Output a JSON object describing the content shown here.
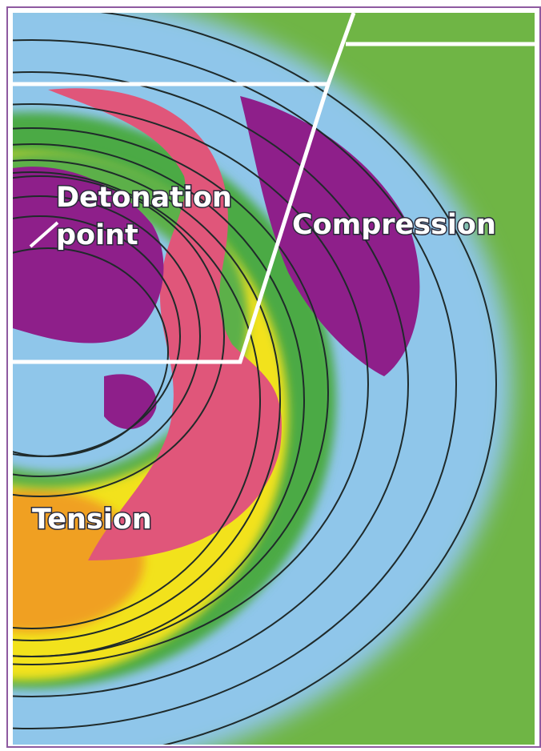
{
  "labels": {
    "detonation": [
      "Detonation",
      "point"
    ],
    "compression": "Compression",
    "tension": "Tension"
  }
}
